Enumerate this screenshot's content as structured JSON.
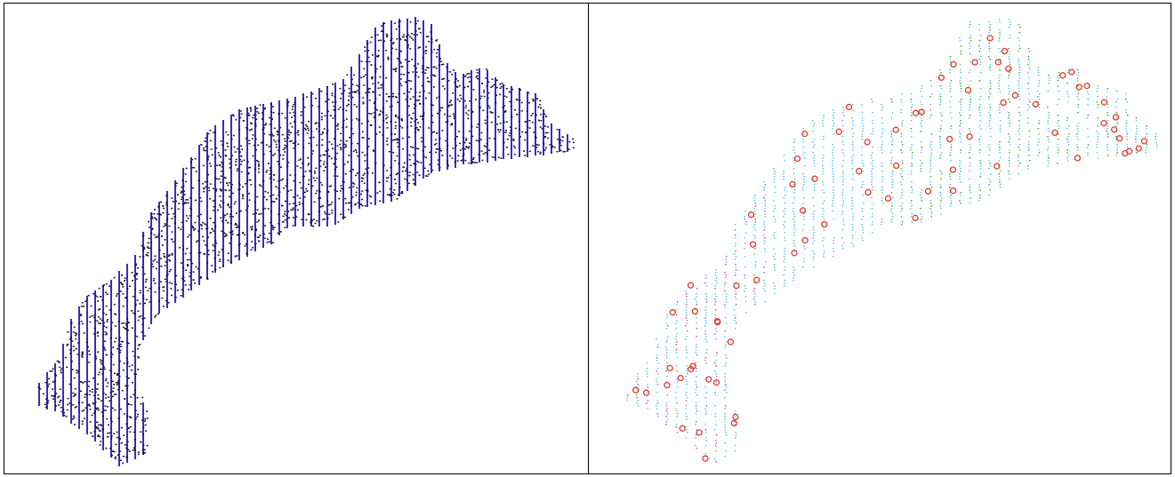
{
  "figure": {
    "panels": [
      {
        "name": "dense-point-cloud",
        "point_color": "#1b0f3a",
        "line_color": "#3b2bbf"
      },
      {
        "name": "sampled-point-cloud",
        "point_colors": [
          "#5ac8ef",
          "#3fae3f",
          "#c84fd8"
        ],
        "marker_color": "#e03a2a"
      }
    ]
  }
}
